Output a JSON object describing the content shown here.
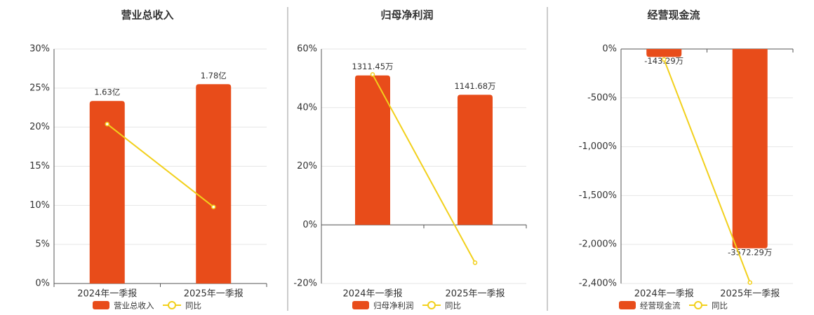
{
  "chart_data": [
    {
      "type": "bar-line",
      "title": "营业总收入",
      "categories": [
        "2024年一季报",
        "2025年一季报"
      ],
      "series": [
        {
          "name": "营业总收入",
          "color": "#e84c1a",
          "values": [
            1.63,
            1.78
          ],
          "value_labels": [
            "1.63亿",
            "1.78亿"
          ]
        },
        {
          "name": "同比",
          "color": "#f2d01c",
          "values": [
            20.4,
            9.8
          ]
        }
      ],
      "ylim": [
        0,
        30
      ],
      "yticks": [
        {
          "value": 0,
          "label": "0%"
        },
        {
          "value": 5,
          "label": "5%"
        },
        {
          "value": 10,
          "label": "10%"
        },
        {
          "value": 15,
          "label": "15%"
        },
        {
          "value": 20,
          "label": "20%"
        },
        {
          "value": 25,
          "label": "25%"
        },
        {
          "value": 30,
          "label": "30%"
        }
      ],
      "grid": true
    },
    {
      "type": "bar-line",
      "title": "归母净利润",
      "categories": [
        "2024年一季报",
        "2025年一季报"
      ],
      "series": [
        {
          "name": "归母净利润",
          "color": "#e84c1a",
          "values": [
            1311.45,
            1141.68
          ],
          "value_labels": [
            "1311.45万",
            "1141.68万"
          ]
        },
        {
          "name": "同比",
          "color": "#f2d01c",
          "values": [
            51.3,
            -12.9
          ]
        }
      ],
      "ylim": [
        -20,
        60
      ],
      "yticks": [
        {
          "value": -20,
          "label": "-20%"
        },
        {
          "value": 0,
          "label": "0%"
        },
        {
          "value": 20,
          "label": "20%"
        },
        {
          "value": 40,
          "label": "40%"
        },
        {
          "value": 60,
          "label": "60%"
        }
      ],
      "grid": true
    },
    {
      "type": "bar-line",
      "title": "经营现金流",
      "categories": [
        "2024年一季报",
        "2025年一季报"
      ],
      "series": [
        {
          "name": "经营现金流",
          "color": "#e84c1a",
          "values": [
            -143.29,
            -3572.29
          ],
          "value_labels": [
            "-143.29万",
            "-3572.29万"
          ]
        },
        {
          "name": "同比",
          "color": "#f2d01c",
          "values": [
            -107,
            -2390
          ]
        }
      ],
      "ylim": [
        -2400,
        0
      ],
      "yticks": [
        {
          "value": -2400,
          "label": "-2,400%"
        },
        {
          "value": -2000,
          "label": "-2,000%"
        },
        {
          "value": -1500,
          "label": "-1,500%"
        },
        {
          "value": -1000,
          "label": "-1,000%"
        },
        {
          "value": -500,
          "label": "-500%"
        },
        {
          "value": 0,
          "label": "0%"
        }
      ],
      "grid": true
    }
  ]
}
